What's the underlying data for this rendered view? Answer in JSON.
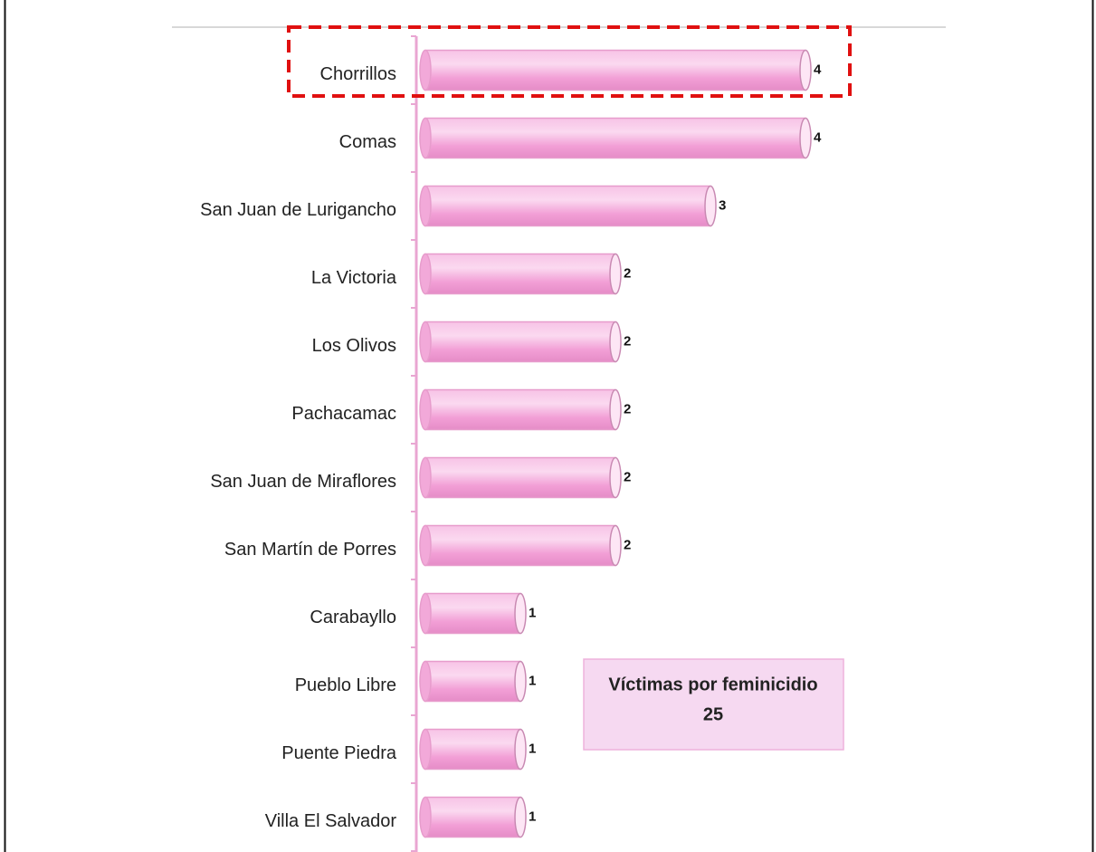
{
  "chart_data": {
    "type": "bar",
    "orientation": "horizontal",
    "categories": [
      "Chorrillos",
      "Comas",
      "San Juan de Lurigancho",
      "La Victoria",
      "Los Olivos",
      "Pachacamac",
      "San Juan de Miraflores",
      "San Martín de Porres",
      "Carabayllo",
      "Pueblo Libre",
      "Puente Piedra",
      "Villa El Salvador"
    ],
    "values": [
      4,
      4,
      3,
      2,
      2,
      2,
      2,
      2,
      1,
      1,
      1,
      1
    ],
    "color": "#f4a6d7",
    "annotation": {
      "title": "Víctimas por feminicidio",
      "value": "25"
    }
  }
}
